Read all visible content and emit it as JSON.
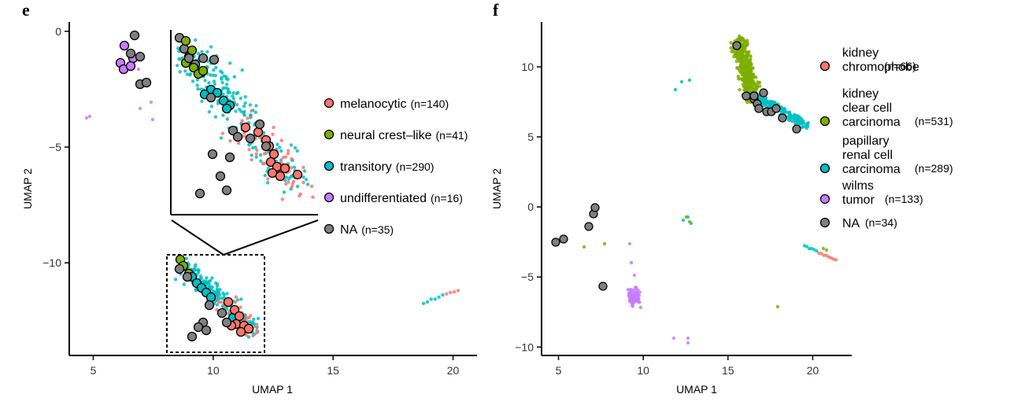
{
  "panels": {
    "e": {
      "letter": "e"
    },
    "f": {
      "letter": "f"
    }
  },
  "chart_data": [
    {
      "panel": "e",
      "type": "scatter",
      "title": "",
      "xlabel": "UMAP 1",
      "ylabel": "UMAP 2",
      "xlim": [
        4,
        21
      ],
      "ylim": [
        -14,
        0.4
      ],
      "xticks": [
        5,
        10,
        15,
        20
      ],
      "yticks": [
        0,
        -5,
        -10
      ],
      "grid": false,
      "legend_position": "right",
      "inset": {
        "type": "zoom",
        "x_range": [
          8.2,
          12.1
        ],
        "y_range": [
          -13.6,
          -9.7
        ]
      },
      "series": [
        {
          "name": "melanocytic",
          "count_label": "(n=140)",
          "color": "#F8766D"
        },
        {
          "name": "neural crest–like",
          "count_label": "(n=41)",
          "color": "#7CAE00"
        },
        {
          "name": "transitory",
          "count_label": "(n=290)",
          "color": "#00BFC4"
        },
        {
          "name": "undifferentiated",
          "count_label": "(n=16)",
          "color": "#C77CFF"
        },
        {
          "name": "NA",
          "count_label": "(n=35)",
          "color": "#808080"
        }
      ]
    },
    {
      "panel": "f",
      "type": "scatter",
      "title": "",
      "xlabel": "UMAP 1",
      "ylabel": "UMAP 2",
      "xlim": [
        4,
        22.3
      ],
      "ylim": [
        -10.6,
        13.2
      ],
      "xticks": [
        5,
        10,
        15,
        20
      ],
      "yticks": [
        10,
        5,
        0,
        -5,
        -10
      ],
      "grid": false,
      "legend_position": "right",
      "series": [
        {
          "name_lines": [
            "kidney",
            "chromophobe"
          ],
          "count_label": "(n=66)",
          "color": "#F8766D"
        },
        {
          "name_lines": [
            "kidney",
            "clear cell",
            "carcinoma"
          ],
          "count_label": "(n=531)",
          "color": "#7CAE00"
        },
        {
          "name_lines": [
            "papillary",
            "renal cell",
            "carcinoma"
          ],
          "count_label": "(n=289)",
          "color": "#00BFC4"
        },
        {
          "name_lines": [
            "wilms",
            "tumor"
          ],
          "count_label": "(n=133)",
          "color": "#C77CFF"
        },
        {
          "name_lines": [
            "NA"
          ],
          "count_label": "(n=34)",
          "color": "#808080"
        }
      ]
    }
  ]
}
